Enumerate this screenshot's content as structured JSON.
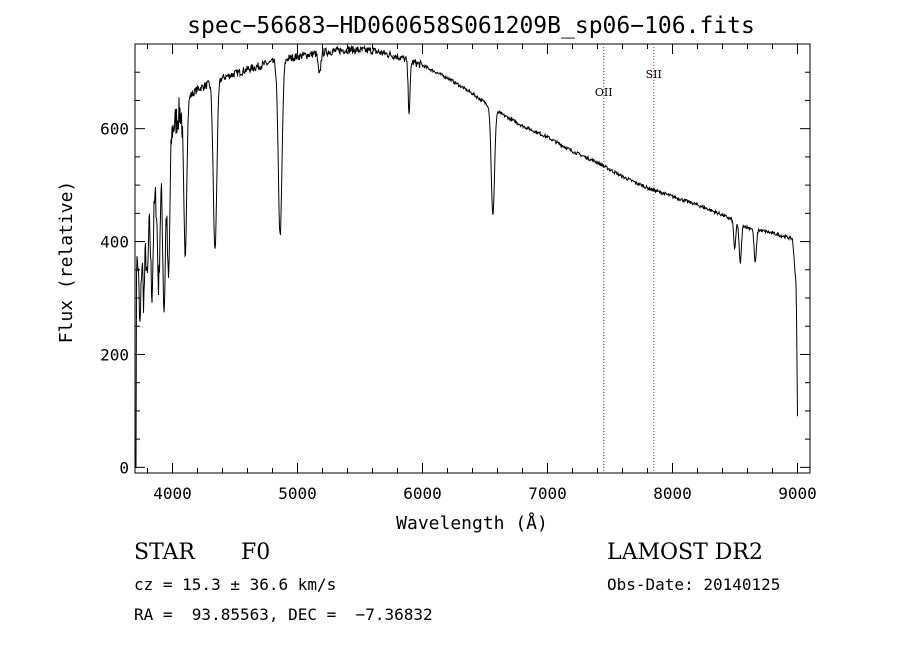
{
  "chart_data": {
    "type": "line",
    "title": "spec−56683−HD060658S061209B_sp06−106.fits",
    "xlabel": "Wavelength (Å)",
    "ylabel": "Flux (relative)",
    "xlim": [
      3700,
      9100
    ],
    "ylim": [
      -10,
      750
    ],
    "xticks": [
      4000,
      5000,
      6000,
      7000,
      8000,
      9000
    ],
    "yticks": [
      0,
      200,
      400,
      600
    ],
    "grid": false,
    "continuum": {
      "x": [
        3700,
        3730,
        3800,
        3900,
        4000,
        4100,
        4200,
        4400,
        4600,
        4800,
        5000,
        5200,
        5400,
        5600,
        5800,
        6000,
        6200,
        6400,
        6600,
        6800,
        7000,
        7200,
        7400,
        7600,
        7800,
        8000,
        8200,
        8400,
        8600,
        8800,
        8960,
        8990,
        9000
      ],
      "y": [
        330,
        390,
        440,
        500,
        600,
        650,
        670,
        690,
        705,
        718,
        728,
        735,
        740,
        738,
        728,
        712,
        690,
        662,
        630,
        605,
        585,
        560,
        540,
        515,
        495,
        480,
        465,
        447,
        425,
        415,
        405,
        320,
        90
      ]
    },
    "absorption_lines": [
      {
        "x": 3740,
        "depth": 150,
        "width": 8
      },
      {
        "x": 3770,
        "depth": 120,
        "width": 8
      },
      {
        "x": 3798,
        "depth": 110,
        "width": 8
      },
      {
        "x": 3835,
        "depth": 150,
        "width": 9
      },
      {
        "x": 3889,
        "depth": 170,
        "width": 9
      },
      {
        "x": 3933,
        "depth": 250,
        "width": 10
      },
      {
        "x": 3968,
        "depth": 240,
        "width": 10
      },
      {
        "x": 4101,
        "depth": 280,
        "width": 12
      },
      {
        "x": 4340,
        "depth": 300,
        "width": 14
      },
      {
        "x": 4861,
        "depth": 310,
        "width": 15
      },
      {
        "x": 5175,
        "depth": 40,
        "width": 10
      },
      {
        "x": 5893,
        "depth": 90,
        "width": 8
      },
      {
        "x": 6563,
        "depth": 190,
        "width": 13
      },
      {
        "x": 8498,
        "depth": 50,
        "width": 8
      },
      {
        "x": 8542,
        "depth": 70,
        "width": 9
      },
      {
        "x": 8662,
        "depth": 60,
        "width": 9
      }
    ],
    "annotations": [
      {
        "label": "OII",
        "x": 7450
      },
      {
        "label": "SII",
        "x": 7850
      }
    ],
    "line_color": "#000000",
    "annotation_color": "#b22222"
  },
  "info": {
    "object_type": "STAR",
    "subclass": "F0",
    "redshift_text": "cz = 15.3 ± 36.6 km/s",
    "coords_text": "RA =  93.85563, DEC =  −7.36832",
    "survey": "LAMOST DR2",
    "obs_date": "Obs-Date: 20140125"
  }
}
